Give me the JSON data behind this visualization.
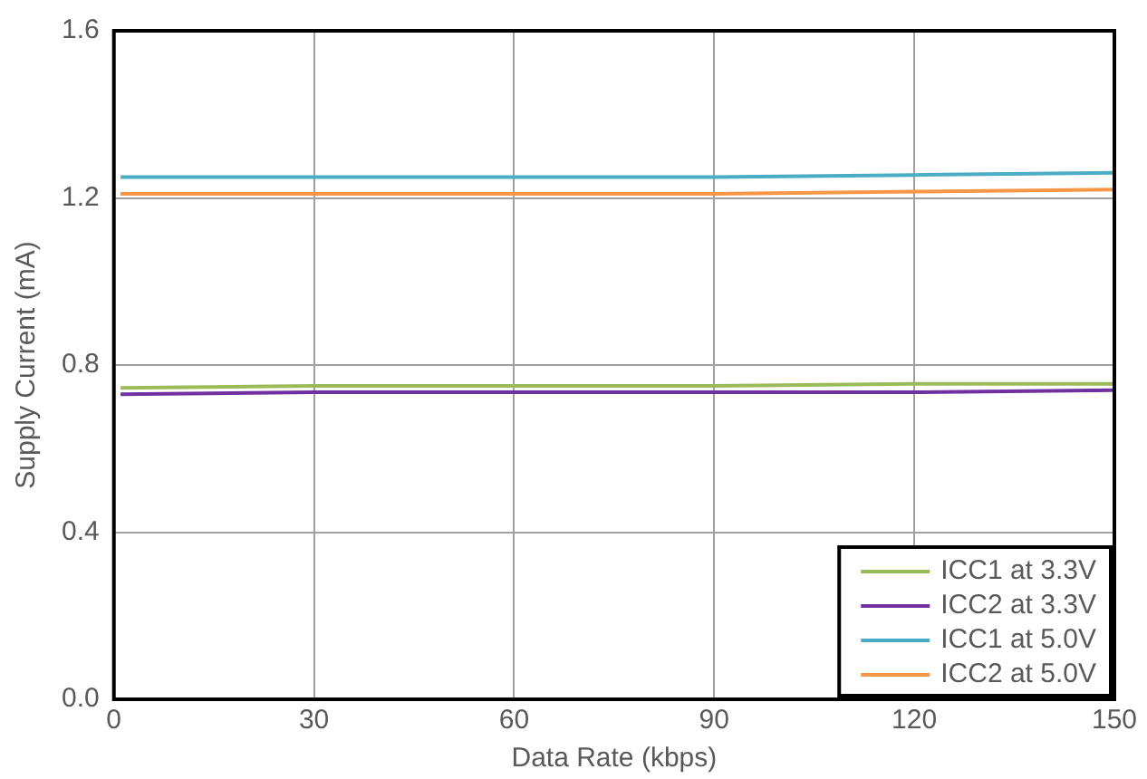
{
  "chart_data": {
    "type": "line",
    "xlabel": "Data Rate (kbps)",
    "ylabel": "Supply Current (mA)",
    "xlim": [
      0,
      150
    ],
    "xticks": [
      0,
      30,
      60,
      90,
      120,
      150
    ],
    "ylim": [
      0,
      1.6
    ],
    "yticks": [
      {
        "value": 0,
        "label": "0.0"
      },
      {
        "value": 0.4,
        "label": "0.4"
      },
      {
        "value": 0.8,
        "label": "0.8"
      },
      {
        "value": 1.2,
        "label": "1.2"
      },
      {
        "value": 1.6,
        "label": "1.6"
      }
    ],
    "grid": true,
    "legend": "bottom right",
    "marker": "none",
    "line_style": "solid",
    "series": [
      {
        "name": "ICC1 at 3.3V",
        "color": "#9bbb59",
        "x": [
          1,
          30,
          60,
          90,
          120,
          150
        ],
        "values": [
          0.745,
          0.75,
          0.75,
          0.75,
          0.755,
          0.755
        ]
      },
      {
        "name": "ICC2 at 3.3V",
        "color": "#7030a0",
        "x": [
          1,
          30,
          60,
          90,
          120,
          150
        ],
        "values": [
          0.73,
          0.735,
          0.735,
          0.735,
          0.735,
          0.74
        ]
      },
      {
        "name": "ICC1 at 5.0V",
        "color": "#4bacc6",
        "x": [
          1,
          30,
          60,
          90,
          120,
          150
        ],
        "values": [
          1.25,
          1.25,
          1.25,
          1.25,
          1.255,
          1.26
        ]
      },
      {
        "name": "ICC2 at 5.0V",
        "color": "#f79646",
        "x": [
          1,
          30,
          60,
          90,
          120,
          150
        ],
        "values": [
          1.21,
          1.21,
          1.21,
          1.21,
          1.215,
          1.22
        ]
      }
    ]
  }
}
